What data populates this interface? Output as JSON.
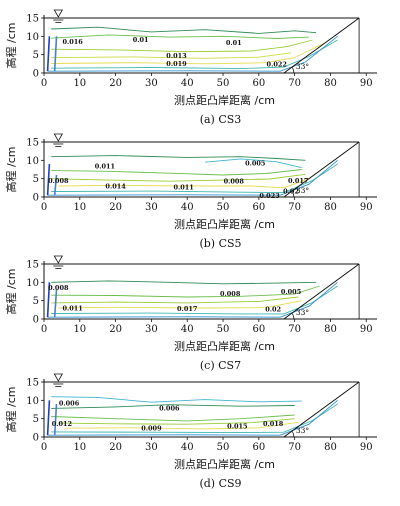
{
  "chart_data": [
    {
      "type": "contour",
      "caption": "(a) CS3",
      "xlabel": "测点距凸岸距离 /cm",
      "ylabel": "高程 /cm",
      "xlim": [
        0,
        93
      ],
      "ylim": [
        0,
        15
      ],
      "xticks": [
        0,
        10,
        20,
        30,
        40,
        50,
        60,
        70,
        80,
        90
      ],
      "yticks": [
        0,
        5,
        10,
        15
      ],
      "water_level": 15,
      "bank_angle_label": "33°",
      "bank": [
        [
          0,
          15
        ],
        [
          71,
          15
        ],
        [
          88,
          15
        ]
      ],
      "bed": [
        [
          0,
          0
        ],
        [
          67,
          0
        ],
        [
          88,
          15
        ]
      ],
      "contour_labels": [
        {
          "text": "0.016",
          "x": 8,
          "y": 8.5
        },
        {
          "text": "0.01",
          "x": 27,
          "y": 9
        },
        {
          "text": "0.01",
          "x": 53,
          "y": 8.2
        },
        {
          "text": "0.013",
          "x": 37,
          "y": 4.6
        },
        {
          "text": "0.019",
          "x": 37,
          "y": 2.4
        },
        {
          "text": "0.022",
          "x": 65,
          "y": 2.3
        }
      ],
      "contours": [
        {
          "color": "#2e8b57",
          "points": [
            [
              2,
              12
            ],
            [
              15,
              12.5
            ],
            [
              30,
              11.2
            ],
            [
              45,
              11.8
            ],
            [
              60,
              10.8
            ],
            [
              70,
              11.5
            ],
            [
              76,
              11
            ]
          ]
        },
        {
          "color": "#6cbf4c",
          "points": [
            [
              2,
              9.5
            ],
            [
              18,
              10.4
            ],
            [
              35,
              9.8
            ],
            [
              50,
              10
            ],
            [
              65,
              9.4
            ],
            [
              74,
              9.8
            ]
          ]
        },
        {
          "color": "#9acd32",
          "points": [
            [
              2,
              6.5
            ],
            [
              20,
              6.3
            ],
            [
              40,
              5.8
            ],
            [
              58,
              6
            ],
            [
              68,
              7.2
            ],
            [
              75,
              9
            ]
          ]
        },
        {
          "color": "#c8dc3c",
          "points": [
            [
              2,
              4.2
            ],
            [
              25,
              4.4
            ],
            [
              45,
              4
            ],
            [
              60,
              4.3
            ],
            [
              69,
              5.5
            ]
          ]
        },
        {
          "color": "#e6dc50",
          "points": [
            [
              2,
              2.6
            ],
            [
              25,
              2.8
            ],
            [
              45,
              2.5
            ],
            [
              62,
              2.8
            ],
            [
              70,
              4.2
            ],
            [
              78,
              8
            ]
          ]
        },
        {
          "color": "#3fb6b0",
          "points": [
            [
              2,
              1.3
            ],
            [
              30,
              1.5
            ],
            [
              55,
              1.2
            ],
            [
              67,
              1.6
            ],
            [
              74,
              4.5
            ],
            [
              82,
              9
            ]
          ]
        },
        {
          "color": "#2e8fd0",
          "points": [
            [
              1,
              0.5
            ],
            [
              40,
              0.6
            ],
            [
              66,
              0.5
            ],
            [
              73,
              3
            ],
            [
              82,
              10
            ]
          ]
        }
      ],
      "near_bank_lines": [
        {
          "color": "#1f3fbf",
          "points": [
            [
              1,
              0.5
            ],
            [
              1.5,
              10
            ]
          ]
        },
        {
          "color": "#4a7fd0",
          "points": [
            [
              3,
              0.5
            ],
            [
              3.5,
              10
            ]
          ]
        }
      ]
    },
    {
      "type": "contour",
      "caption": "(b) CS5",
      "xlabel": "测点距凸岸距离 /cm",
      "ylabel": "高程 /cm",
      "xlim": [
        0,
        93
      ],
      "ylim": [
        0,
        15
      ],
      "xticks": [
        0,
        10,
        20,
        30,
        40,
        50,
        60,
        70,
        80,
        90
      ],
      "yticks": [
        0,
        5,
        10,
        15
      ],
      "water_level": 15,
      "bank_angle_label": "33°",
      "bank": [
        [
          0,
          15
        ],
        [
          71,
          15
        ],
        [
          88,
          15
        ]
      ],
      "bed": [
        [
          0,
          0
        ],
        [
          67,
          0
        ],
        [
          88,
          15
        ]
      ],
      "contour_labels": [
        {
          "text": "0.011",
          "x": 17,
          "y": 8.3
        },
        {
          "text": "0.005",
          "x": 59,
          "y": 9.2
        },
        {
          "text": "0.008",
          "x": 4,
          "y": 4.3
        },
        {
          "text": "0.014",
          "x": 20,
          "y": 2.8
        },
        {
          "text": "0.011",
          "x": 39,
          "y": 2.6
        },
        {
          "text": "0.008",
          "x": 53,
          "y": 4.2
        },
        {
          "text": "0.017",
          "x": 71,
          "y": 4.3
        },
        {
          "text": "0.02",
          "x": 69,
          "y": 1.5
        },
        {
          "text": "0.023",
          "x": 63,
          "y": 0.3
        }
      ],
      "contours": [
        {
          "color": "#2e8b57",
          "points": [
            [
              2,
              11
            ],
            [
              20,
              11.3
            ],
            [
              40,
              10.8
            ],
            [
              55,
              11
            ],
            [
              65,
              10.5
            ],
            [
              73,
              10
            ]
          ]
        },
        {
          "color": "#3fb6d0",
          "points": [
            [
              45,
              9.5
            ],
            [
              55,
              10.4
            ],
            [
              65,
              9.6
            ],
            [
              72,
              8
            ]
          ]
        },
        {
          "color": "#6cbf4c",
          "points": [
            [
              2,
              7.2
            ],
            [
              18,
              7
            ],
            [
              35,
              6.5
            ],
            [
              50,
              6
            ],
            [
              62,
              6.4
            ],
            [
              72,
              7.5
            ]
          ]
        },
        {
          "color": "#9acd32",
          "points": [
            [
              2,
              5
            ],
            [
              18,
              4.6
            ],
            [
              35,
              4.3
            ],
            [
              50,
              4.6
            ],
            [
              63,
              4.9
            ],
            [
              73,
              6.2
            ]
          ]
        },
        {
          "color": "#e6dc50",
          "points": [
            [
              4,
              3
            ],
            [
              20,
              3.2
            ],
            [
              40,
              3
            ],
            [
              58,
              3
            ],
            [
              67,
              2.5
            ],
            [
              74,
              5
            ]
          ]
        },
        {
          "color": "#3fb6b0",
          "points": [
            [
              2,
              1.5
            ],
            [
              30,
              1.6
            ],
            [
              55,
              1.3
            ],
            [
              67,
              1.2
            ],
            [
              75,
              4.5
            ],
            [
              82,
              9
            ]
          ]
        },
        {
          "color": "#2e8fd0",
          "points": [
            [
              1,
              0.5
            ],
            [
              40,
              0.6
            ],
            [
              66,
              0.5
            ],
            [
              74,
              3.5
            ],
            [
              82,
              10
            ]
          ]
        }
      ],
      "near_bank_lines": [
        {
          "color": "#1f3fbf",
          "points": [
            [
              1,
              0.5
            ],
            [
              1.5,
              9
            ]
          ]
        },
        {
          "color": "#4a7fd0",
          "points": [
            [
              3,
              0.5
            ],
            [
              3.5,
              6
            ]
          ]
        }
      ]
    },
    {
      "type": "contour",
      "caption": "(c) CS7",
      "xlabel": "测点距凸岸距离 /cm",
      "ylabel": "高程 /cm",
      "xlim": [
        0,
        93
      ],
      "ylim": [
        0,
        15
      ],
      "xticks": [
        0,
        10,
        20,
        30,
        40,
        50,
        60,
        70,
        80,
        90
      ],
      "yticks": [
        0,
        5,
        10,
        15
      ],
      "water_level": 15,
      "bank_angle_label": "33°",
      "bank": [
        [
          0,
          15
        ],
        [
          71,
          15
        ],
        [
          88,
          15
        ]
      ],
      "bed": [
        [
          0,
          0
        ],
        [
          67,
          0
        ],
        [
          88,
          15
        ]
      ],
      "contour_labels": [
        {
          "text": "0.008",
          "x": 4,
          "y": 8.5
        },
        {
          "text": "0.008",
          "x": 52,
          "y": 6.8
        },
        {
          "text": "0.005",
          "x": 69,
          "y": 7.3
        },
        {
          "text": "0.011",
          "x": 8,
          "y": 2.9
        },
        {
          "text": "0.017",
          "x": 40,
          "y": 2.7
        },
        {
          "text": "0.02",
          "x": 64,
          "y": 2.6
        }
      ],
      "contours": [
        {
          "color": "#2e8b57",
          "points": [
            [
              2,
              10
            ],
            [
              18,
              10.4
            ],
            [
              35,
              10
            ],
            [
              50,
              9.6
            ],
            [
              65,
              9.8
            ],
            [
              76,
              10
            ]
          ]
        },
        {
          "color": "#6cbf4c",
          "points": [
            [
              2,
              6.5
            ],
            [
              20,
              6.4
            ],
            [
              40,
              6
            ],
            [
              55,
              6.2
            ],
            [
              70,
              6.8
            ],
            [
              77,
              9
            ]
          ]
        },
        {
          "color": "#9acd32",
          "points": [
            [
              2,
              4.4
            ],
            [
              20,
              4.6
            ],
            [
              40,
              4.4
            ],
            [
              60,
              4.8
            ],
            [
              71,
              6
            ]
          ]
        },
        {
          "color": "#e6dc50",
          "points": [
            [
              4,
              3
            ],
            [
              20,
              3.2
            ],
            [
              45,
              3
            ],
            [
              62,
              3.1
            ],
            [
              72,
              5
            ]
          ]
        },
        {
          "color": "#3fb6b0",
          "points": [
            [
              2,
              1.5
            ],
            [
              30,
              1.6
            ],
            [
              55,
              1.4
            ],
            [
              67,
              1.4
            ],
            [
              75,
              4.5
            ],
            [
              82,
              9
            ]
          ]
        },
        {
          "color": "#2e8fd0",
          "points": [
            [
              1,
              0.5
            ],
            [
              40,
              0.6
            ],
            [
              66,
              0.5
            ],
            [
              74,
              3.5
            ],
            [
              82,
              10
            ]
          ]
        }
      ],
      "near_bank_lines": [
        {
          "color": "#1f3fbf",
          "points": [
            [
              1,
              0.5
            ],
            [
              1.5,
              10
            ]
          ]
        },
        {
          "color": "#4a7fd0",
          "points": [
            [
              3,
              0.5
            ],
            [
              3.5,
              8
            ]
          ]
        }
      ]
    },
    {
      "type": "contour",
      "caption": "(d) CS9",
      "xlabel": "测点距凸岸距离 /cm",
      "ylabel": "高程 /cm",
      "xlim": [
        0,
        93
      ],
      "ylim": [
        0,
        15
      ],
      "xticks": [
        0,
        10,
        20,
        30,
        40,
        50,
        60,
        70,
        80,
        90
      ],
      "yticks": [
        0,
        5,
        10,
        15
      ],
      "water_level": 15,
      "bank_angle_label": "33°",
      "bank": [
        [
          0,
          15
        ],
        [
          71,
          15
        ],
        [
          88,
          15
        ]
      ],
      "bed": [
        [
          0,
          0
        ],
        [
          67,
          0
        ],
        [
          88,
          15
        ]
      ],
      "contour_labels": [
        {
          "text": "0.006",
          "x": 7,
          "y": 9.2
        },
        {
          "text": "0.006",
          "x": 35,
          "y": 7.8
        },
        {
          "text": "0.012",
          "x": 5,
          "y": 3.6
        },
        {
          "text": "0.009",
          "x": 30,
          "y": 2.3
        },
        {
          "text": "0.015",
          "x": 54,
          "y": 2.8
        },
        {
          "text": "0.018",
          "x": 64,
          "y": 3.6
        }
      ],
      "contours": [
        {
          "color": "#3fb6d0",
          "points": [
            [
              2,
              11
            ],
            [
              15,
              10.8
            ],
            [
              30,
              9.5
            ],
            [
              45,
              10.2
            ],
            [
              60,
              9.6
            ],
            [
              72,
              9.8
            ]
          ]
        },
        {
          "color": "#2e8b57",
          "points": [
            [
              2,
              7.8
            ],
            [
              20,
              8.2
            ],
            [
              35,
              8.8
            ],
            [
              55,
              8.4
            ],
            [
              70,
              8.6
            ]
          ]
        },
        {
          "color": "#6cbf4c",
          "points": [
            [
              2,
              5.6
            ],
            [
              20,
              5
            ],
            [
              40,
              4.4
            ],
            [
              55,
              5
            ],
            [
              70,
              6
            ]
          ]
        },
        {
          "color": "#9acd32",
          "points": [
            [
              4,
              3.8
            ],
            [
              20,
              3.6
            ],
            [
              40,
              3.5
            ],
            [
              58,
              3.9
            ],
            [
              70,
              5
            ]
          ]
        },
        {
          "color": "#e6dc50",
          "points": [
            [
              6,
              2.4
            ],
            [
              25,
              2.5
            ],
            [
              45,
              2.2
            ],
            [
              60,
              2.5
            ],
            [
              71,
              4
            ]
          ]
        },
        {
          "color": "#3fb6b0",
          "points": [
            [
              2,
              1.4
            ],
            [
              30,
              1.3
            ],
            [
              55,
              1.2
            ],
            [
              67,
              1.3
            ],
            [
              75,
              4.5
            ],
            [
              82,
              9
            ]
          ]
        },
        {
          "color": "#2e8fd0",
          "points": [
            [
              1,
              0.5
            ],
            [
              40,
              0.6
            ],
            [
              66,
              0.5
            ],
            [
              74,
              3.5
            ],
            [
              82,
              10
            ]
          ]
        }
      ],
      "near_bank_lines": [
        {
          "color": "#1f3fbf",
          "points": [
            [
              1,
              0.5
            ],
            [
              1.5,
              10
            ]
          ]
        },
        {
          "color": "#4a7fd0",
          "points": [
            [
              3,
              0.5
            ],
            [
              3.5,
              9
            ]
          ]
        }
      ]
    }
  ]
}
